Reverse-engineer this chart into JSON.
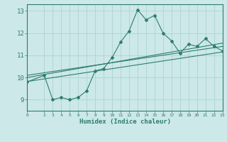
{
  "xlabel": "Humidex (Indice chaleur)",
  "bg_color": "#cce8e8",
  "line_color": "#2e7d6e",
  "grid_color": "#aacfcf",
  "xlim": [
    0,
    23
  ],
  "ylim": [
    8.5,
    13.3
  ],
  "xticks": [
    0,
    2,
    3,
    4,
    5,
    6,
    7,
    8,
    9,
    10,
    11,
    12,
    13,
    14,
    15,
    16,
    17,
    18,
    19,
    20,
    21,
    22,
    23
  ],
  "yticks": [
    9,
    10,
    11,
    12,
    13
  ],
  "curve1_x": [
    0,
    2,
    3,
    4,
    5,
    6,
    7,
    8,
    9,
    10,
    11,
    12,
    13,
    14,
    15,
    16,
    17,
    18,
    19,
    20,
    21,
    22,
    23
  ],
  "curve1_y": [
    9.8,
    10.1,
    9.0,
    9.1,
    9.0,
    9.1,
    9.4,
    10.3,
    10.4,
    10.9,
    11.6,
    12.1,
    13.05,
    12.6,
    12.8,
    12.0,
    11.65,
    11.1,
    11.5,
    11.4,
    11.75,
    11.4,
    11.2
  ],
  "line1_x": [
    0,
    23
  ],
  "line1_y": [
    9.82,
    11.15
  ],
  "line2_x": [
    0,
    23
  ],
  "line2_y": [
    10.1,
    11.4
  ],
  "line3_x": [
    0,
    23
  ],
  "line3_y": [
    10.0,
    11.55
  ]
}
